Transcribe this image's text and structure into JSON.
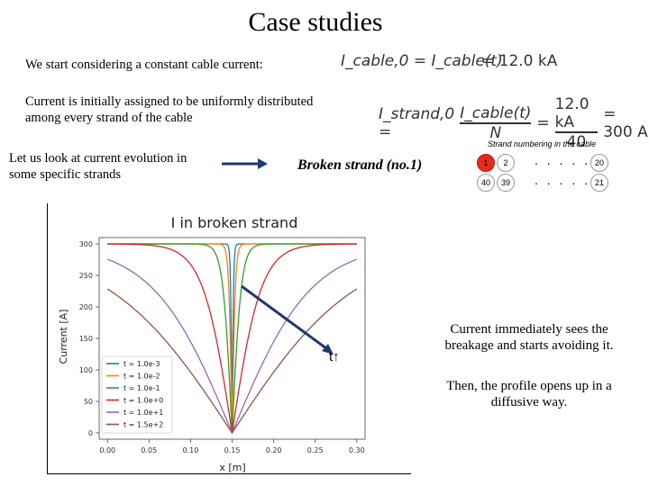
{
  "slide": {
    "title": "Case studies",
    "intro_text": "We start considering a constant cable current:",
    "uniform_text_line1": "Current is initially assigned to be uniformly distributed",
    "uniform_text_line2": "among every strand of the cable",
    "evolution_text_line1": "Let us look at current evolution in",
    "evolution_text_line2": "some specific strands",
    "broken_strand_label": "Broken strand (no.1)",
    "time_arrow_label": "t↑",
    "note1_line1": "Current immediately sees the",
    "note1_line2": "breakage and starts avoiding it.",
    "note2_line1": "Then, the profile opens up in a",
    "note2_line2": "diffusive way."
  },
  "equations": {
    "eq1_lhs": "I_cable,0 = I_cable(t)",
    "eq1_rhs": "= 12.0 kA",
    "eq2_lhs": "I_strand,0 =",
    "eq2_num": "I_cable(t)",
    "eq2_den": "N",
    "eq2_mid_num": "12.0 kA",
    "eq2_mid_den": "40",
    "eq2_result": "= 300 A"
  },
  "strand_diagram": {
    "caption": "Strand numbering in the cable",
    "top_row": [
      "1",
      "2",
      "20"
    ],
    "bottom_row": [
      "40",
      "39",
      "21"
    ],
    "dots": ". . . . .",
    "highlight_color": "#e8291c"
  },
  "chart_data": {
    "type": "line",
    "title": "I in broken strand",
    "xlabel": "x [m]",
    "ylabel": "Current [A]",
    "xlim": [
      -0.01,
      0.31
    ],
    "ylim": [
      -10,
      310
    ],
    "xticks": [
      "0.00",
      "0.05",
      "0.10",
      "0.15",
      "0.20",
      "0.25",
      "0.30"
    ],
    "yticks": [
      "0",
      "50",
      "100",
      "150",
      "200",
      "250",
      "300"
    ],
    "grid": false,
    "legend_position": "lower-left",
    "broken_x": 0.15,
    "plateau": 300,
    "series": [
      {
        "name": "t = 1.0e-3",
        "color": "#1f77b4",
        "width_m": 0.0018
      },
      {
        "name": "t = 1.0e-2",
        "color": "#ff7f0e",
        "width_m": 0.004
      },
      {
        "name": "t = 1.0e-1",
        "color": "#2ca02c",
        "width_m": 0.011
      },
      {
        "name": "t = 1.0e+0",
        "color": "#d62728",
        "width_m": 0.035
      },
      {
        "name": "t = 1.0e+1",
        "color": "#9467bd",
        "width_m": 0.095
      },
      {
        "name": "t = 1.5e+2",
        "color": "#8c564b",
        "width_m": 0.15
      }
    ]
  }
}
